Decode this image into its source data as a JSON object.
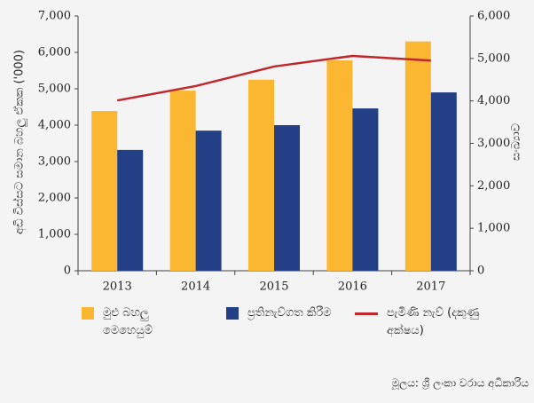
{
  "chart_data": {
    "type": "bar",
    "categories": [
      "2013",
      "2014",
      "2015",
      "2016",
      "2017"
    ],
    "series": [
      {
        "name": "මුළු බහලු මෙහෙයුම්",
        "color": "#fbb731",
        "values": [
          4390,
          4950,
          5250,
          5780,
          6300
        ]
      },
      {
        "name": "ප්‍රතිනැව්ගත කිරීම",
        "color": "#233f86",
        "values": [
          3320,
          3850,
          4000,
          4460,
          4900
        ]
      },
      {
        "name": "පැමිණි නැව් (දකුණු අක්ෂය)",
        "color": "#c0272d",
        "type": "line",
        "axis": "y2",
        "values": [
          4010,
          4350,
          4810,
          5060,
          4950
        ]
      }
    ],
    "ylabel": "අඩි විස්සට සමාන බහලු ඒකක ('000)",
    "y2label": "සංඛ්‍යාව",
    "ylim": [
      0,
      7000
    ],
    "yticks": [
      0,
      {
        "value": 1000,
        "label": "1,000"
      },
      {
        "value": 2000,
        "label": "2,000"
      },
      {
        "value": 3000,
        "label": "3,000"
      },
      {
        "value": 4000,
        "label": "4,000"
      },
      {
        "value": 5000,
        "label": "5,000"
      },
      {
        "value": 6000,
        "label": "6,000"
      },
      {
        "value": 7000,
        "label": "7,000"
      }
    ],
    "y2lim": [
      0,
      6000
    ],
    "y2ticks": [
      0,
      {
        "value": 1000,
        "label": "1,000"
      },
      {
        "value": 2000,
        "label": "2,000"
      },
      {
        "value": 3000,
        "label": "3,000"
      },
      {
        "value": 4000,
        "label": "4,000"
      },
      {
        "value": 5000,
        "label": "5,000"
      },
      {
        "value": 6000,
        "label": "6,000"
      }
    ],
    "source": "මූලය: ශ්‍රී ලංකා වරාය අධිකාරිය"
  }
}
